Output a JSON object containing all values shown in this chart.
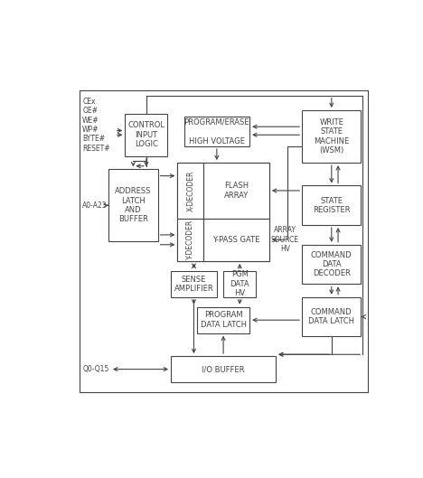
{
  "figsize": [
    4.68,
    5.29
  ],
  "dpi": 100,
  "bg": "#ffffff",
  "lc": "#444444",
  "fc": "#ffffff",
  "fs": 6.0,
  "lw": 0.8,
  "border": [
    0.08,
    0.04,
    0.88,
    0.92
  ],
  "boxes": {
    "control": [
      0.22,
      0.76,
      0.13,
      0.13
    ],
    "prog_erase": [
      0.4,
      0.79,
      0.2,
      0.09
    ],
    "wsm": [
      0.76,
      0.74,
      0.18,
      0.16
    ],
    "addr_latch": [
      0.17,
      0.5,
      0.15,
      0.22
    ],
    "flash_outer": [
      0.38,
      0.44,
      0.28,
      0.3
    ],
    "flash_array": [
      0.46,
      0.57,
      0.2,
      0.17
    ],
    "xdecoder": [
      0.38,
      0.57,
      0.08,
      0.17
    ],
    "ydecoder": [
      0.38,
      0.44,
      0.08,
      0.13
    ],
    "ypass": [
      0.46,
      0.44,
      0.2,
      0.13
    ],
    "state_reg": [
      0.76,
      0.55,
      0.18,
      0.12
    ],
    "sense_amp": [
      0.36,
      0.33,
      0.14,
      0.08
    ],
    "pgm_data": [
      0.52,
      0.33,
      0.1,
      0.08
    ],
    "cmd_dec": [
      0.76,
      0.37,
      0.18,
      0.12
    ],
    "prog_latch": [
      0.44,
      0.22,
      0.16,
      0.08
    ],
    "cmd_latch": [
      0.76,
      0.21,
      0.18,
      0.12
    ],
    "io_buffer": [
      0.36,
      0.07,
      0.32,
      0.08
    ]
  },
  "labels": {
    "control": "CONTROL\nINPUT\nLOGIC",
    "prog_erase": "PROGRAM/ERASE\n\nHIGH VOLTAGE",
    "wsm": "WRITE\nSTATE\nMACHINE\n(WSM)",
    "addr_latch": "ADDRESS\nLATCH\nAND\nBUFFER",
    "flash_array": "FLASH\nARRAY",
    "xdecoder": "X-DECODER",
    "ydecoder": "Y-DECODER",
    "ypass": "Y-PASS GATE",
    "state_reg": "STATE\nREGISTER",
    "sense_amp": "SENSE\nAMPLIFIER",
    "pgm_data": "PGM\nDATA\nHV",
    "cmd_dec": "COMMAND\nDATA\nDECODER",
    "prog_latch": "PROGRAM\nDATA LATCH",
    "cmd_latch": "COMMAND\nDATA LATCH",
    "io_buffer": "I/O BUFFER"
  }
}
